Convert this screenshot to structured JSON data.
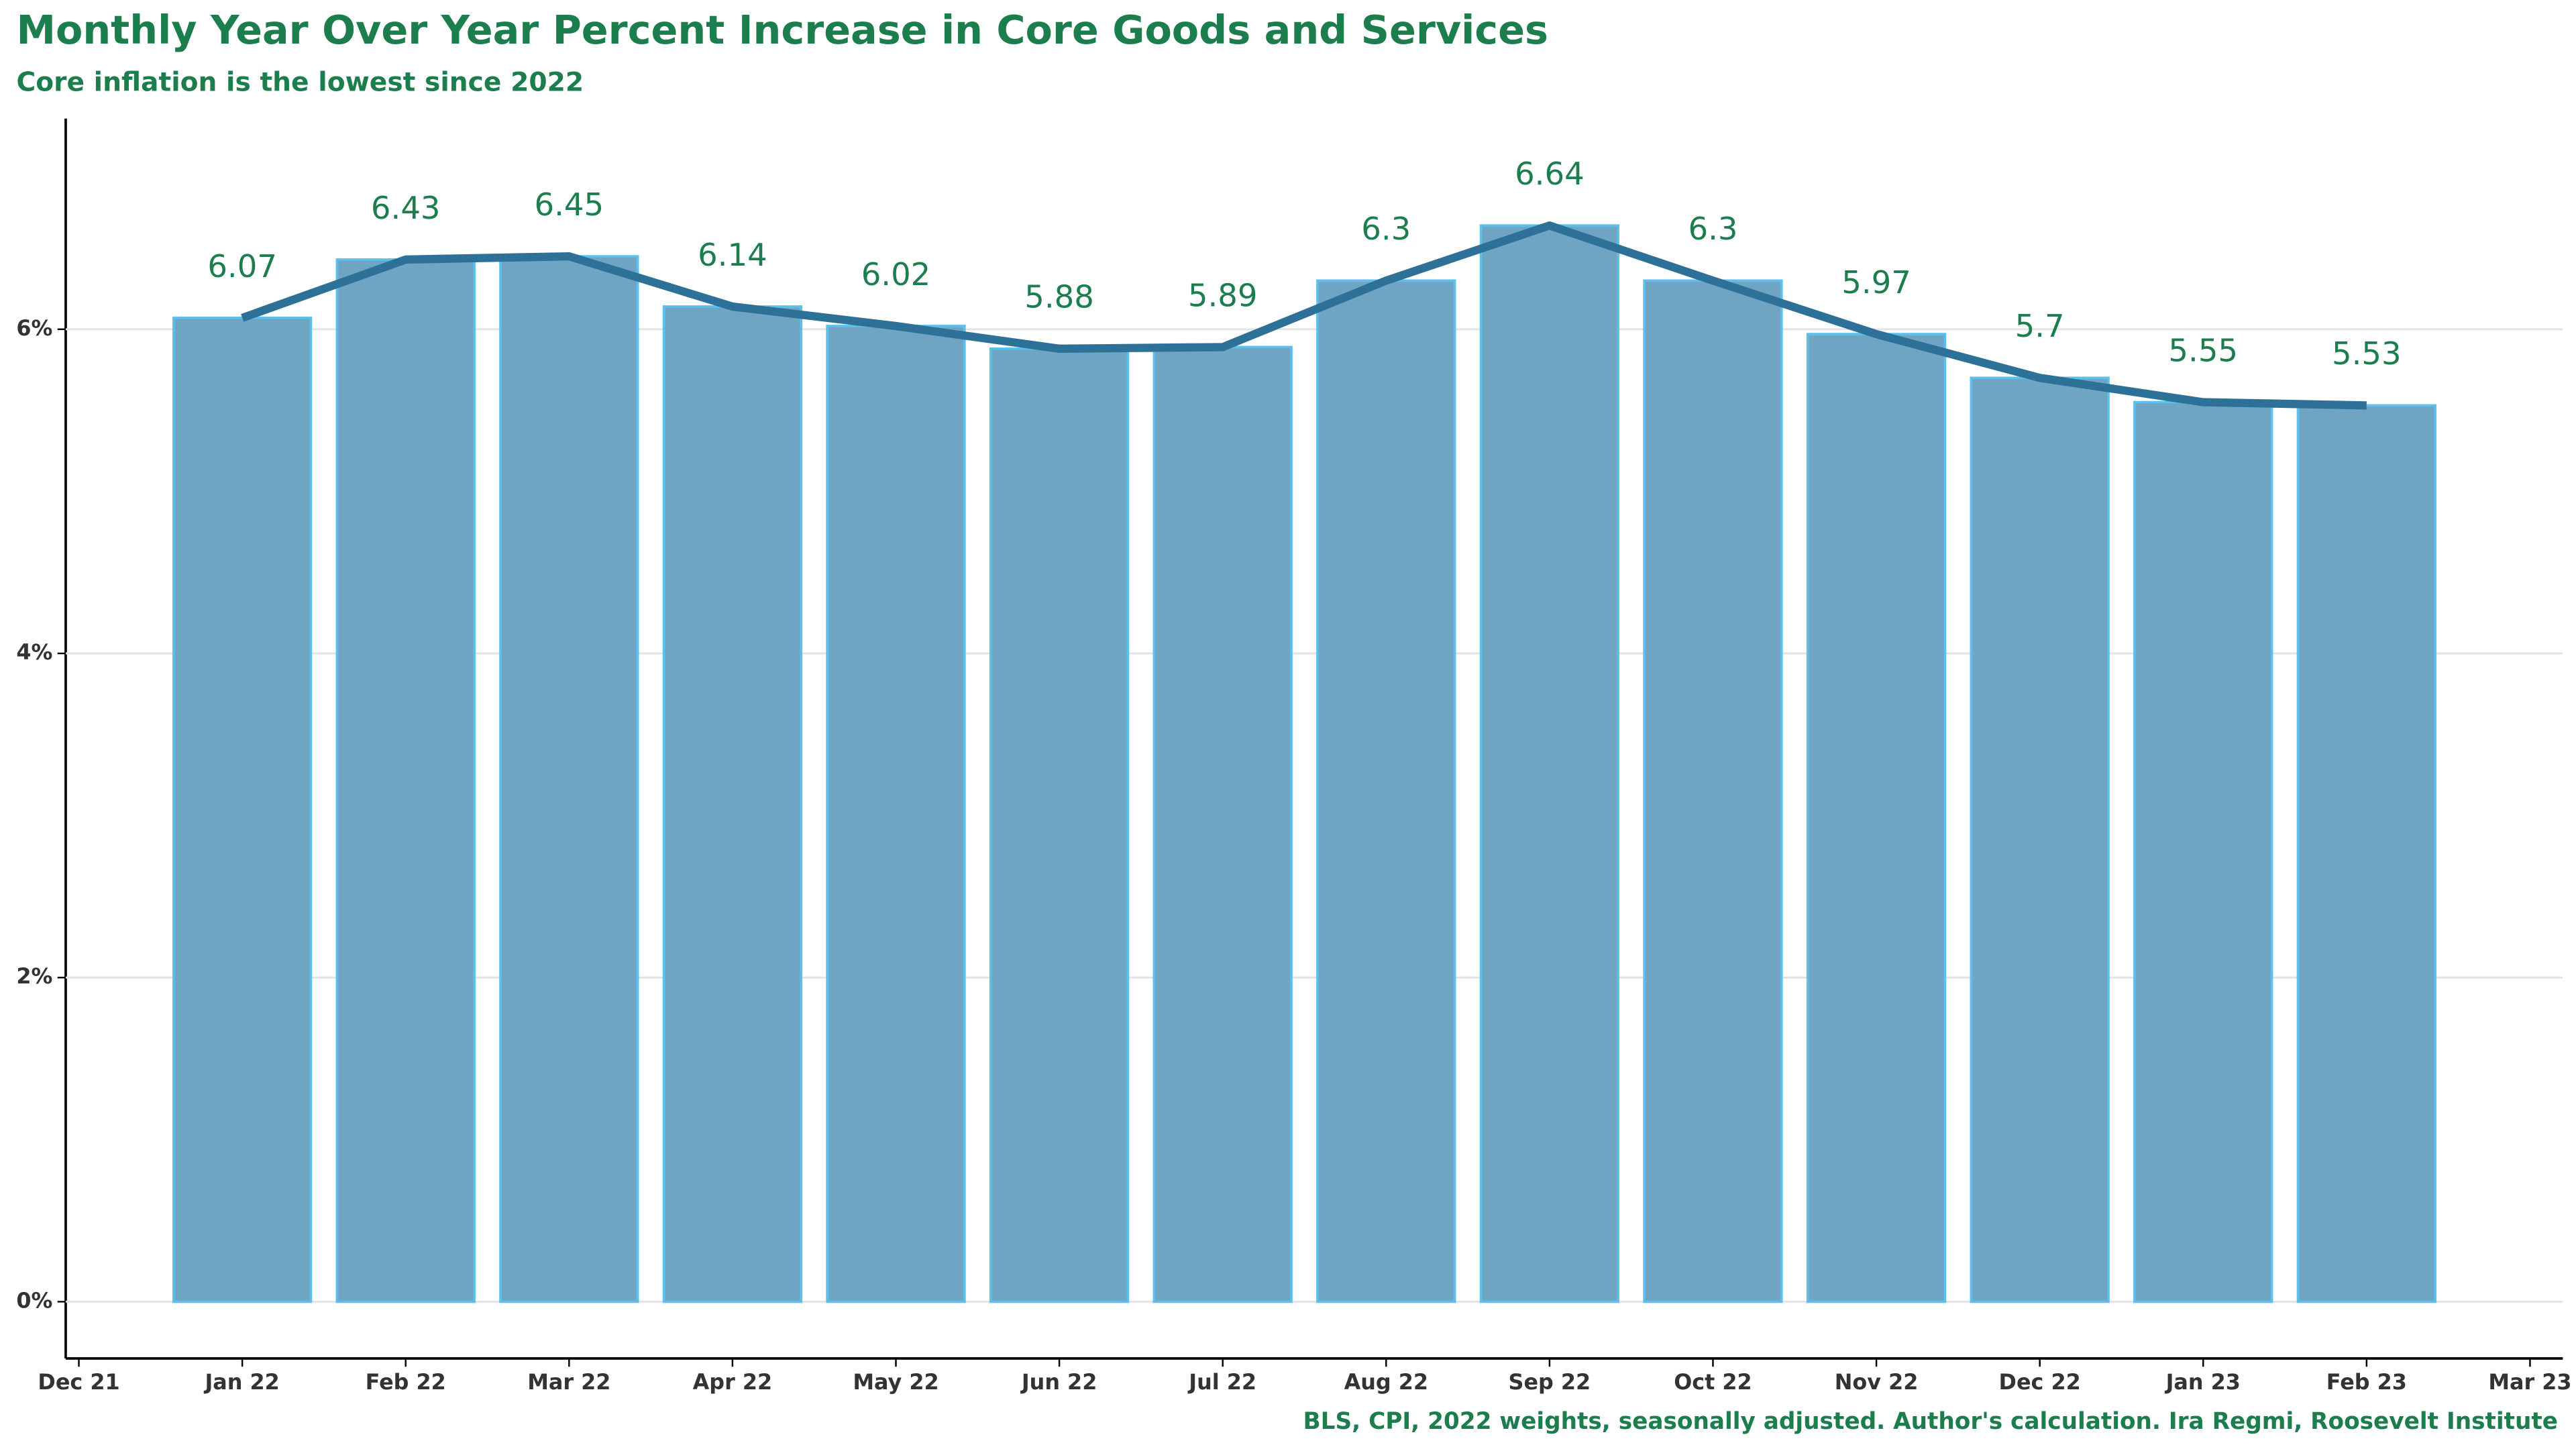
{
  "chart_data": {
    "type": "bar",
    "title": "Monthly Year Over Year Percent Increase in Core Goods and Services",
    "subtitle": "Core inflation is the lowest since 2022",
    "source": "BLS, CPI, 2022 weights, seasonally adjusted. Author's calculation. Ira Regmi, Roosevelt Institute",
    "x": [
      "Jan 22",
      "Feb 22",
      "Mar 22",
      "Apr 22",
      "May 22",
      "Jun 22",
      "Jul 22",
      "Aug 22",
      "Sep 22",
      "Oct 22",
      "Nov 22",
      "Dec 22",
      "Jan 23",
      "Feb 23"
    ],
    "values": [
      6.07,
      6.43,
      6.45,
      6.14,
      6.02,
      5.88,
      5.89,
      6.3,
      6.64,
      6.3,
      5.97,
      5.7,
      5.55,
      5.53
    ],
    "color": "#6fa5c2",
    "edge_color": "#5bc0eb",
    "line_color": "#2e7198",
    "xticks": [
      "Dec 21",
      "Jan 22",
      "Feb 22",
      "Mar 22",
      "Apr 22",
      "May 22",
      "Jun 22",
      "Jul 22",
      "Aug 22",
      "Sep 22",
      "Oct 22",
      "Nov 22",
      "Dec 22",
      "Jan 23",
      "Feb 23",
      "Mar 23"
    ],
    "ylim": [
      -0.35,
      7.3
    ],
    "yticks": [
      {
        "value": 0,
        "label": "0%"
      },
      {
        "value": 2,
        "label": "2%"
      },
      {
        "value": 4,
        "label": "4%"
      },
      {
        "value": 6,
        "label": "6%"
      }
    ],
    "grid": true
  }
}
